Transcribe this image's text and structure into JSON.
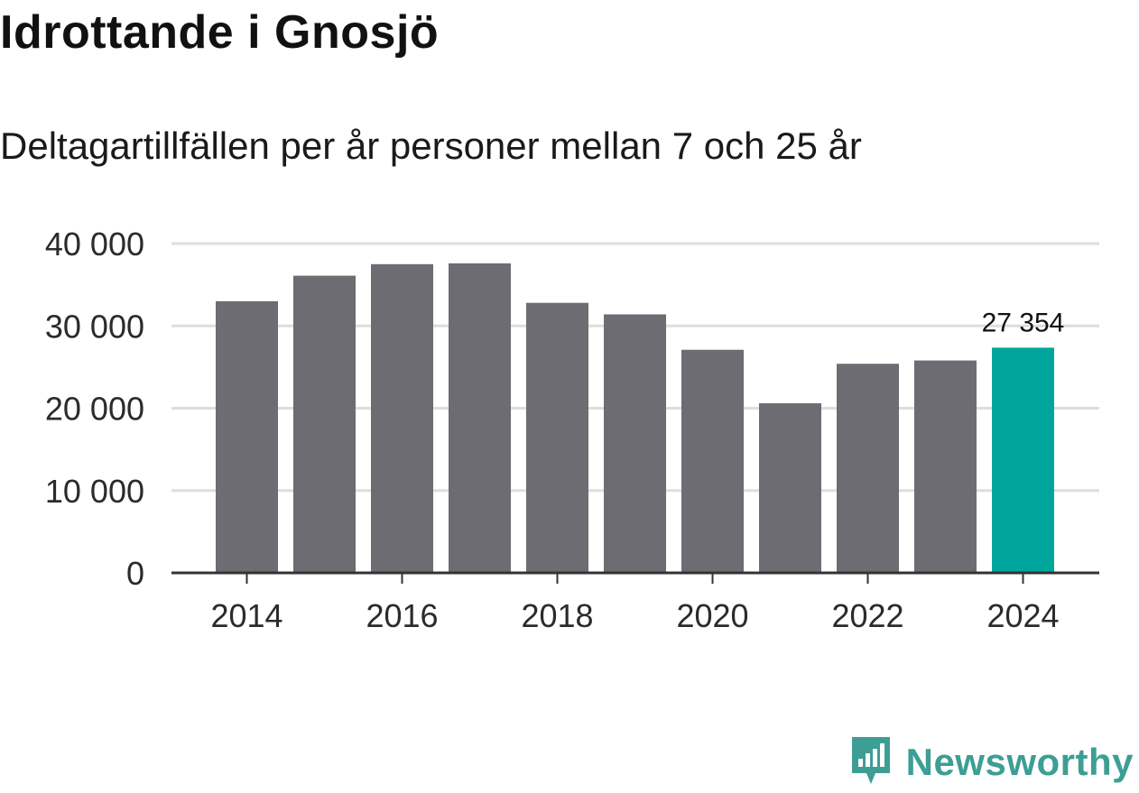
{
  "header": {
    "title": "Idrottande i Gnosjö",
    "subtitle": "Deltagartillfällen per år personer mellan 7 och 25 år"
  },
  "chart_data": {
    "type": "bar",
    "title": "Idrottande i Gnosjö",
    "subtitle": "Deltagartillfällen per år personer mellan 7 och 25 år",
    "xlabel": "",
    "ylabel": "",
    "categories": [
      "2014",
      "2015",
      "2016",
      "2017",
      "2018",
      "2019",
      "2020",
      "2021",
      "2022",
      "2023",
      "2024"
    ],
    "values": [
      33000,
      36100,
      37500,
      37600,
      32800,
      31400,
      27100,
      20600,
      25400,
      25800,
      27354
    ],
    "ylim": [
      0,
      40000
    ],
    "yticks": [
      0,
      10000,
      20000,
      30000,
      40000
    ],
    "ytick_labels": [
      "0",
      "10 000",
      "20 000",
      "30 000",
      "40 000"
    ],
    "xtick_labels": [
      "2014",
      "2016",
      "2018",
      "2020",
      "2022",
      "2024"
    ],
    "highlight_index": 10,
    "highlight_label": "27 354",
    "grid": true,
    "colors": {
      "bar": "#6d6c73",
      "highlight": "#00a59b",
      "grid": "#dddddd",
      "axis": "#333333"
    }
  },
  "brand": {
    "name": "Newsworthy",
    "icon": "newsworthy-logo-icon",
    "color": "#3d9e94"
  }
}
